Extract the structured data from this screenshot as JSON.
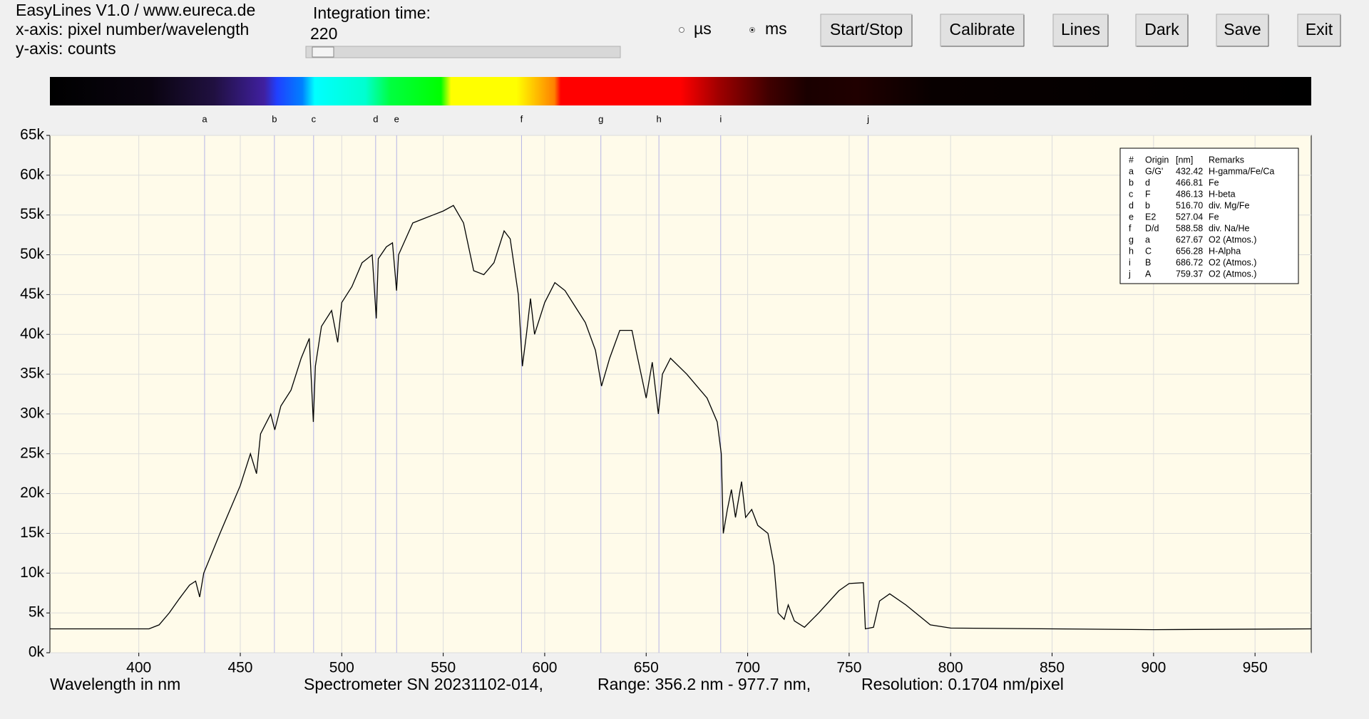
{
  "header": {
    "title_lines": [
      "EasyLines V1.0 / www.eureca.de",
      "x-axis: pixel number/wavelength",
      "y-axis: counts"
    ],
    "integration_label": "Integration time:",
    "integration_value": "220",
    "radio_options": [
      "µs",
      "ms"
    ],
    "buttons": [
      "Start/Stop",
      "Calibrate",
      "Lines",
      "Dark",
      "Save",
      "Exit"
    ]
  },
  "footer": {
    "serial": "Spectrometer SN 20231102-014,",
    "range": "Range: 356.2 nm - 977.7 nm,",
    "resolution": "Resolution: 0.1704 nm/pixel"
  },
  "chart_data": {
    "type": "line",
    "x_label": "Wavelength in nm",
    "xlim": [
      356.2,
      977.7
    ],
    "ylim": [
      0,
      65000
    ],
    "xticks": [
      400,
      450,
      500,
      550,
      600,
      650,
      700,
      750,
      800,
      850,
      900,
      950
    ],
    "yticks": [
      {
        "value": 0,
        "label": "0k"
      },
      {
        "value": 5000,
        "label": "5k"
      },
      {
        "value": 10000,
        "label": "10k"
      },
      {
        "value": 15000,
        "label": "15k"
      },
      {
        "value": 20000,
        "label": "20k"
      },
      {
        "value": 25000,
        "label": "25k"
      },
      {
        "value": 30000,
        "label": "30k"
      },
      {
        "value": 35000,
        "label": "35k"
      },
      {
        "value": 40000,
        "label": "40k"
      },
      {
        "value": 45000,
        "label": "45k"
      },
      {
        "value": 50000,
        "label": "50k"
      },
      {
        "value": 55000,
        "label": "55k"
      },
      {
        "value": 60000,
        "label": "60k"
      },
      {
        "value": 65000,
        "label": "65k"
      }
    ],
    "grid": true,
    "series": [
      {
        "color": "#000000",
        "x": [
          356.2,
          380,
          405,
          410,
          415,
          420,
          425,
          428,
          430,
          432,
          440,
          445,
          450,
          455,
          458,
          460,
          465,
          467,
          470,
          475,
          480,
          484,
          486,
          487,
          490,
          495,
          498,
          500,
          505,
          510,
          515,
          517,
          518,
          522,
          525,
          527,
          528,
          535,
          540,
          545,
          550,
          555,
          560,
          565,
          570,
          575,
          580,
          583,
          587,
          589,
          591,
          593,
          595,
          600,
          605,
          610,
          615,
          620,
          625,
          628,
          632,
          637,
          643,
          645,
          650,
          653,
          656,
          658,
          662,
          670,
          680,
          685,
          687,
          688,
          690,
          692,
          694,
          697,
          699,
          702,
          705,
          710,
          713,
          715,
          718,
          720,
          723,
          728,
          735,
          745,
          750,
          757,
          758,
          762,
          765,
          770,
          778,
          790,
          800,
          850,
          900,
          977.7
        ],
        "values": [
          3000,
          3000,
          3000,
          3500,
          5000,
          6800,
          8500,
          9000,
          7000,
          10000,
          15000,
          18000,
          21000,
          25000,
          22500,
          27500,
          30000,
          28000,
          31000,
          33000,
          37000,
          39500,
          29000,
          36000,
          41000,
          43000,
          39000,
          44000,
          46000,
          49000,
          50000,
          42000,
          49500,
          51000,
          51500,
          45500,
          50000,
          54000,
          54500,
          55000,
          55500,
          56200,
          54000,
          48000,
          47500,
          49000,
          53000,
          52000,
          45000,
          36000,
          40000,
          44500,
          40000,
          44000,
          46500,
          45500,
          43500,
          41500,
          38000,
          33500,
          37000,
          40500,
          40500,
          38000,
          32000,
          36500,
          30000,
          35000,
          37000,
          35000,
          32000,
          29000,
          25000,
          15000,
          18000,
          20500,
          17000,
          21500,
          17000,
          18000,
          16000,
          15000,
          11000,
          5000,
          4200,
          6000,
          4000,
          3200,
          5000,
          7800,
          8700,
          8800,
          3000,
          3200,
          6500,
          7400,
          6000,
          3500,
          3100,
          3000,
          2900,
          3000
        ]
      }
    ],
    "legend_header": [
      "#",
      "Origin",
      "[nm]",
      "Remarks"
    ],
    "lines": [
      {
        "id": "a",
        "origin": "G/G'",
        "nm": 432.42,
        "remarks": "H-gamma/Fe/Ca"
      },
      {
        "id": "b",
        "origin": "d",
        "nm": 466.81,
        "remarks": "Fe"
      },
      {
        "id": "c",
        "origin": "F",
        "nm": 486.13,
        "remarks": "H-beta"
      },
      {
        "id": "d",
        "origin": "b",
        "nm": {
          "value": 516.7,
          "label": "516.70"
        },
        "remarks": "div. Mg/Fe"
      },
      {
        "id": "e",
        "origin": "E2",
        "nm": 527.04,
        "remarks": "Fe"
      },
      {
        "id": "f",
        "origin": "D/d",
        "nm": 588.58,
        "remarks": "div. Na/He"
      },
      {
        "id": "g",
        "origin": "a",
        "nm": 627.67,
        "remarks": "O2 (Atmos.)"
      },
      {
        "id": "h",
        "origin": "C",
        "nm": 656.28,
        "remarks": "H-Alpha"
      },
      {
        "id": "i",
        "origin": "B",
        "nm": 686.72,
        "remarks": "O2 (Atmos.)"
      },
      {
        "id": "j",
        "origin": "A",
        "nm": 759.37,
        "remarks": "O2 (Atmos.)"
      }
    ]
  }
}
